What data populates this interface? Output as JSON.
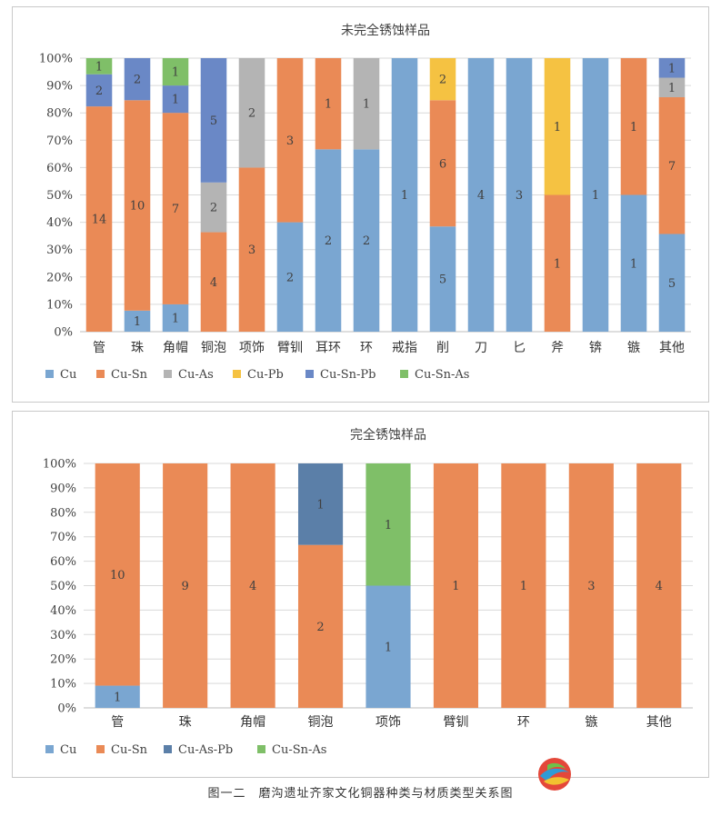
{
  "colors": {
    "Cu": "#7aa6d1",
    "Cu-Sn": "#ea8a56",
    "Cu-As": "#b4b4b4",
    "Cu-Pb": "#f5c242",
    "Cu-Sn-Pb": "#6a88c6",
    "Cu-Sn-As": "#7fbf68",
    "Cu-As-Pb": "#5b7fa8"
  },
  "caption": "图一二　磨沟遗址齐家文化铜器种类与材质类型关系图",
  "chart_data": [
    {
      "type": "bar",
      "stacked": "percent",
      "title": "未完全锈蚀样品",
      "yticks": [
        "0%",
        "10%",
        "20%",
        "30%",
        "40%",
        "50%",
        "60%",
        "70%",
        "80%",
        "90%",
        "100%"
      ],
      "ylim": [
        0,
        100
      ],
      "grid": true,
      "legend_position": "bottom",
      "categories": [
        "管",
        "珠",
        "角帽",
        "铜泡",
        "项饰",
        "臂钏",
        "耳环",
        "环",
        "戒指",
        "削",
        "刀",
        "匕",
        "斧",
        "锛",
        "镞",
        "其他"
      ],
      "series": [
        {
          "name": "Cu",
          "values": [
            0,
            1,
            1,
            0,
            0,
            2,
            2,
            2,
            1,
            5,
            4,
            3,
            0,
            1,
            1,
            5
          ]
        },
        {
          "name": "Cu-Sn",
          "values": [
            14,
            10,
            7,
            4,
            3,
            3,
            1,
            0,
            0,
            6,
            0,
            0,
            1,
            0,
            1,
            7
          ]
        },
        {
          "name": "Cu-As",
          "values": [
            0,
            0,
            0,
            2,
            2,
            0,
            0,
            1,
            0,
            0,
            0,
            0,
            0,
            0,
            0,
            1
          ]
        },
        {
          "name": "Cu-Pb",
          "values": [
            0,
            0,
            0,
            0,
            0,
            0,
            0,
            0,
            0,
            2,
            0,
            0,
            1,
            0,
            0,
            0
          ]
        },
        {
          "name": "Cu-Sn-Pb",
          "values": [
            2,
            2,
            1,
            5,
            0,
            0,
            0,
            0,
            0,
            0,
            0,
            0,
            0,
            0,
            0,
            1
          ]
        },
        {
          "name": "Cu-Sn-As",
          "values": [
            1,
            0,
            1,
            0,
            0,
            0,
            0,
            0,
            0,
            0,
            0,
            0,
            0,
            0,
            0,
            0
          ]
        }
      ]
    },
    {
      "type": "bar",
      "stacked": "percent",
      "title": "完全锈蚀样品",
      "yticks": [
        "0%",
        "10%",
        "20%",
        "30%",
        "40%",
        "50%",
        "60%",
        "70%",
        "80%",
        "90%",
        "100%"
      ],
      "ylim": [
        0,
        100
      ],
      "grid": true,
      "legend_position": "bottom",
      "categories": [
        "管",
        "珠",
        "角帽",
        "铜泡",
        "项饰",
        "臂钏",
        "环",
        "镞",
        "其他"
      ],
      "series": [
        {
          "name": "Cu",
          "values": [
            1,
            0,
            0,
            0,
            1,
            0,
            0,
            0,
            0
          ]
        },
        {
          "name": "Cu-Sn",
          "values": [
            10,
            9,
            4,
            2,
            0,
            1,
            1,
            3,
            4
          ]
        },
        {
          "name": "Cu-As-Pb",
          "values": [
            0,
            0,
            0,
            1,
            0,
            0,
            0,
            0,
            0
          ]
        },
        {
          "name": "Cu-Sn-As",
          "values": [
            0,
            0,
            0,
            0,
            1,
            0,
            0,
            0,
            0
          ]
        }
      ]
    }
  ]
}
